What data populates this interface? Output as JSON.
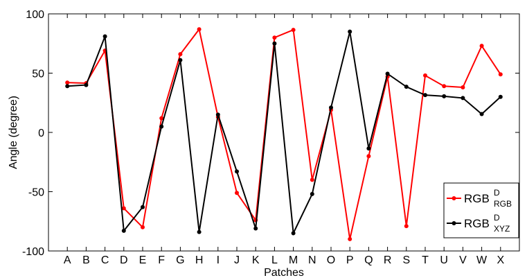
{
  "chart_data": {
    "type": "line",
    "xlabel": "Patches",
    "ylabel": "Angle (degree)",
    "categories": [
      "A",
      "B",
      "C",
      "D",
      "E",
      "F",
      "G",
      "H",
      "I",
      "J",
      "K",
      "L",
      "M",
      "N",
      "O",
      "P",
      "Q",
      "R",
      "S",
      "T",
      "U",
      "V",
      "W",
      "X"
    ],
    "ylim": [
      -100,
      100
    ],
    "yticks": [
      -100,
      -50,
      0,
      50,
      100
    ],
    "grid": false,
    "legend_position": "bottom-right",
    "series": [
      {
        "name_main": "RGB",
        "name_sup": "D",
        "name_sub": "RGB",
        "color": "#ff0000",
        "values": [
          42,
          41.5,
          69,
          -64,
          -80,
          12,
          66,
          87,
          13,
          -51,
          -74,
          80,
          86.5,
          -40,
          19,
          -90,
          -20,
          47,
          -79,
          48,
          39,
          38,
          73,
          49
        ]
      },
      {
        "name_main": "RGB",
        "name_sup": "D",
        "name_sub": "XYZ",
        "color": "#000000",
        "values": [
          39,
          40,
          81,
          -83,
          -63,
          5,
          61,
          -84,
          15,
          -33,
          -81,
          75,
          -85,
          -52,
          21,
          85,
          -13.5,
          49.5,
          38.5,
          31.5,
          30.5,
          29,
          15.5,
          30
        ]
      }
    ]
  }
}
